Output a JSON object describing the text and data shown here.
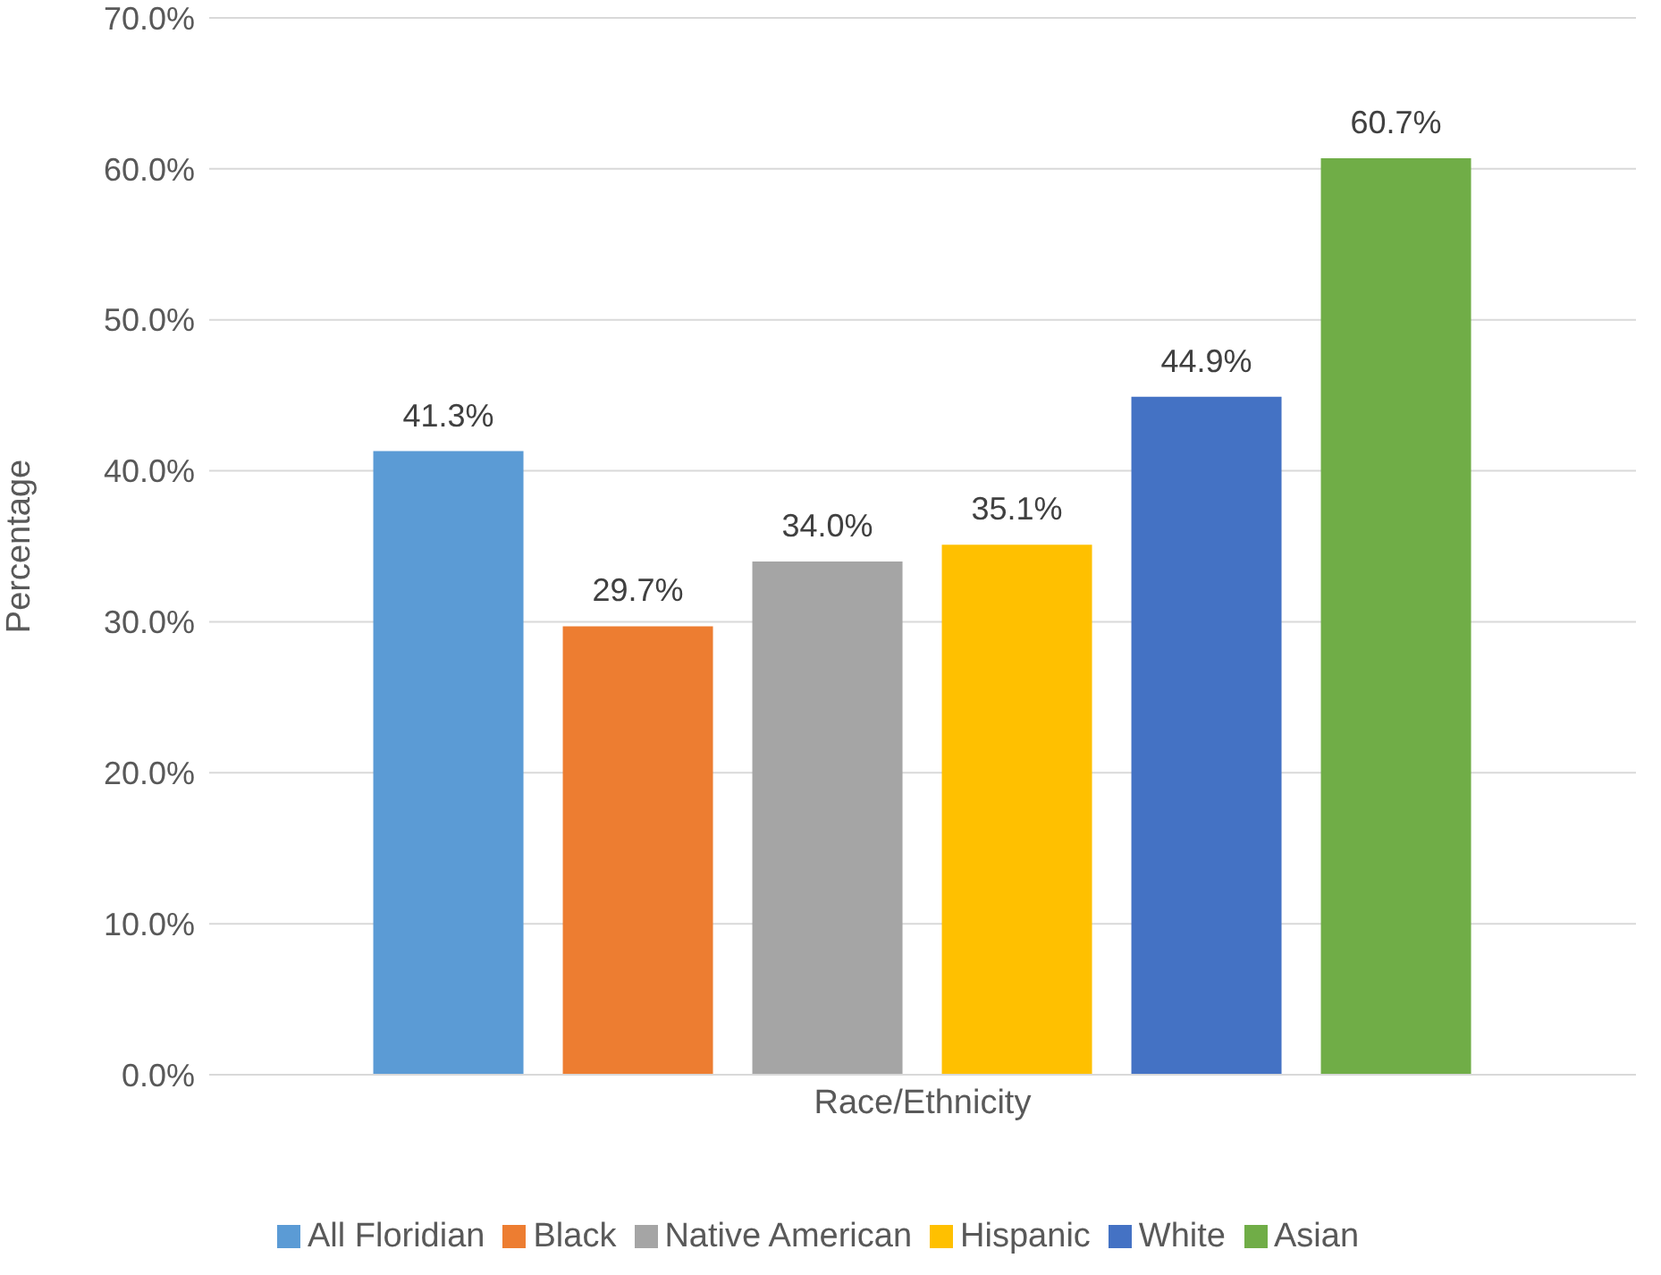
{
  "chart_data": {
    "type": "bar",
    "xlabel": null,
    "ylabel": "Percentage",
    "categories": [
      "Race/Ethnicity"
    ],
    "series": [
      {
        "name": "All Floridian",
        "color": "#5b9bd5",
        "values": [
          41.3
        ],
        "value_labels": [
          "41.3%"
        ]
      },
      {
        "name": "Black",
        "color": "#ed7d31",
        "values": [
          29.7
        ],
        "value_labels": [
          "29.7%"
        ]
      },
      {
        "name": "Native American",
        "color": "#a5a5a5",
        "values": [
          34.0
        ],
        "value_labels": [
          "34.0%"
        ]
      },
      {
        "name": "Hispanic",
        "color": "#ffc000",
        "values": [
          35.1
        ],
        "value_labels": [
          "35.1%"
        ]
      },
      {
        "name": "White",
        "color": "#4472c4",
        "values": [
          44.9
        ],
        "value_labels": [
          "44.9%"
        ]
      },
      {
        "name": "Asian",
        "color": "#70ad47",
        "values": [
          60.7
        ],
        "value_labels": [
          "60.7%"
        ]
      }
    ],
    "ylim": [
      0,
      70
    ],
    "yticks": [
      {
        "value": 0,
        "label": "0.0%"
      },
      {
        "value": 10,
        "label": "10.0%"
      },
      {
        "value": 20,
        "label": "20.0%"
      },
      {
        "value": 30,
        "label": "30.0%"
      },
      {
        "value": 40,
        "label": "40.0%"
      },
      {
        "value": 50,
        "label": "50.0%"
      },
      {
        "value": 60,
        "label": "60.0%"
      },
      {
        "value": 70,
        "label": "70.0%"
      }
    ],
    "grid": "y",
    "legend": "bottom"
  }
}
